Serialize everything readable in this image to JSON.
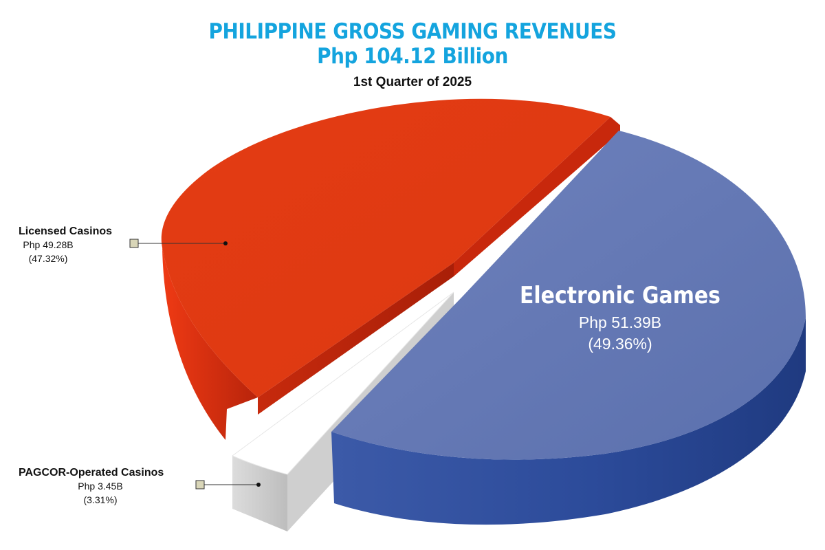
{
  "title_line1": "PHILIPPINE GROSS GAMING REVENUES",
  "title_line2": "Php 104.12 Billion",
  "subtitle": "1st Quarter of 2025",
  "colors": {
    "title": "#14a4de",
    "electronic_games": "#6478b4",
    "licensed_casinos": "#e23b14",
    "pagcor_casinos": "#ffffff",
    "marker": "#d9d6b8"
  },
  "chart_data": {
    "type": "pie",
    "title": "PHILIPPINE GROSS GAMING REVENUES",
    "subtitle": "1st Quarter of 2025",
    "total": "Php 104.12 Billion",
    "unit": "Php billions",
    "slices": [
      {
        "name": "Electronic Games",
        "value": 51.39,
        "value_label": "Php 51.39B",
        "percent": 49.36,
        "percent_label": "(49.36%)",
        "color": "#6478b4"
      },
      {
        "name": "Licensed Casinos",
        "value": 49.28,
        "value_label": "Php 49.28B",
        "percent": 47.32,
        "percent_label": "(47.32%)",
        "color": "#e23b14"
      },
      {
        "name": "PAGCOR-Operated Casinos",
        "value": 3.45,
        "value_label": "Php 3.45B",
        "percent": 3.31,
        "percent_label": "(3.31%)",
        "color": "#ffffff"
      }
    ]
  }
}
